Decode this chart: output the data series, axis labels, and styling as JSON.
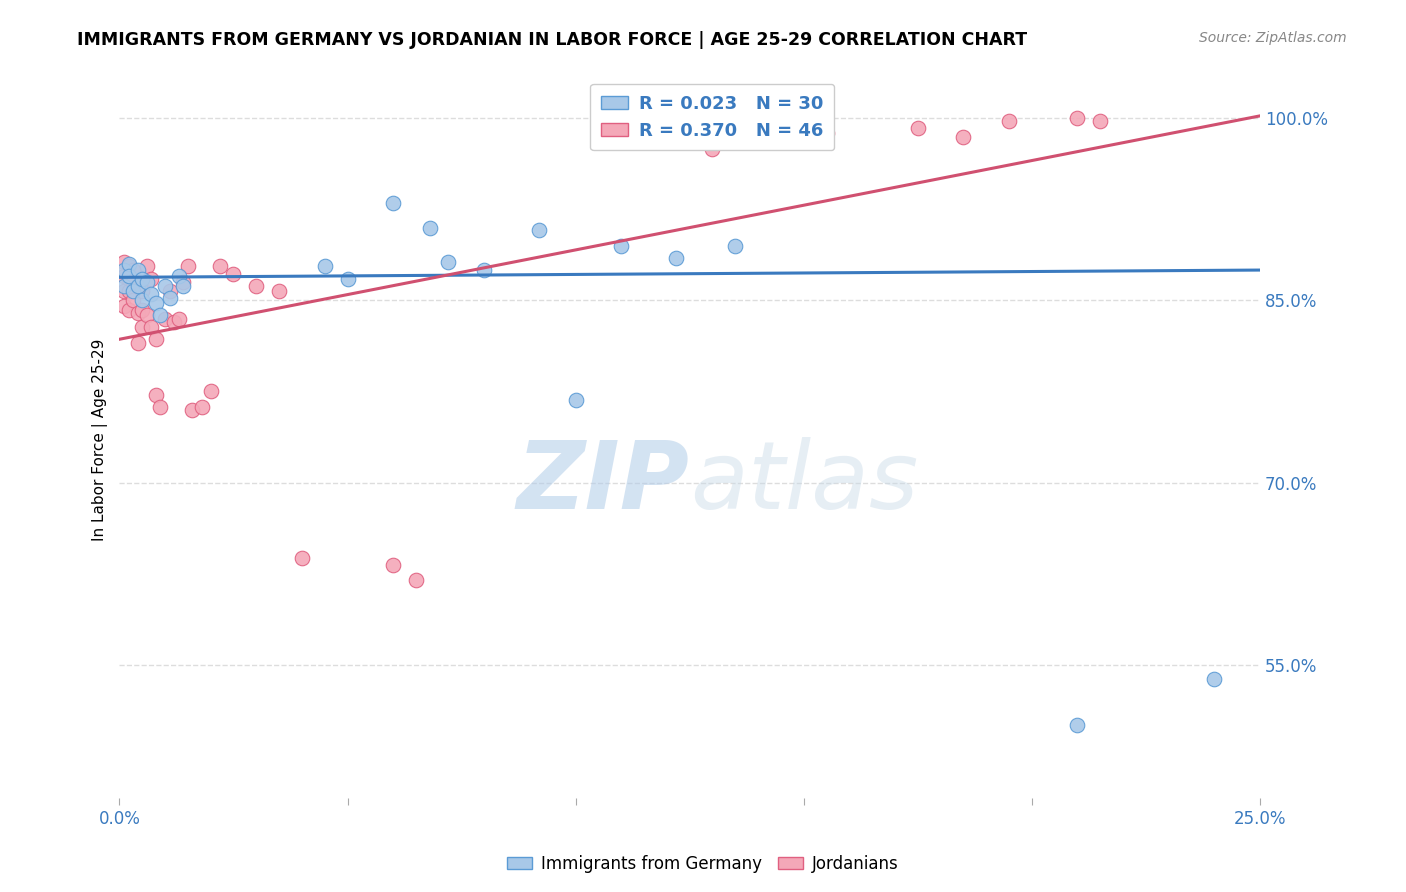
{
  "title": "IMMIGRANTS FROM GERMANY VS JORDANIAN IN LABOR FORCE | AGE 25-29 CORRELATION CHART",
  "source": "Source: ZipAtlas.com",
  "ylabel": "In Labor Force | Age 25-29",
  "xmin": 0.0,
  "xmax": 0.25,
  "ymin": 0.44,
  "ymax": 1.03,
  "xticks": [
    0.0,
    0.05,
    0.1,
    0.15,
    0.2,
    0.25
  ],
  "xtick_labels": [
    "0.0%",
    "",
    "",
    "",
    "",
    "25.0%"
  ],
  "yticks": [
    0.55,
    0.7,
    0.85,
    1.0
  ],
  "ytick_labels": [
    "55.0%",
    "70.0%",
    "85.0%",
    "100.0%"
  ],
  "grid_color": "#dddddd",
  "blue_color": "#a8c8e8",
  "pink_color": "#f4a8b8",
  "blue_edge_color": "#5b9bd5",
  "pink_edge_color": "#e06080",
  "blue_line_color": "#3a7abf",
  "pink_line_color": "#d05070",
  "legend_R_blue": "R = 0.023",
  "legend_N_blue": "N = 30",
  "legend_R_pink": "R = 0.370",
  "legend_N_pink": "N = 46",
  "legend_label_blue": "Immigrants from Germany",
  "legend_label_pink": "Jordanians",
  "watermark_zip": "ZIP",
  "watermark_atlas": "atlas",
  "blue_x": [
    0.001,
    0.001,
    0.002,
    0.002,
    0.003,
    0.004,
    0.004,
    0.005,
    0.005,
    0.006,
    0.007,
    0.008,
    0.009,
    0.01,
    0.011,
    0.013,
    0.014,
    0.045,
    0.05,
    0.06,
    0.068,
    0.072,
    0.08,
    0.092,
    0.1,
    0.11,
    0.122,
    0.135,
    0.21,
    0.24
  ],
  "blue_y": [
    0.875,
    0.862,
    0.88,
    0.87,
    0.858,
    0.875,
    0.862,
    0.85,
    0.868,
    0.865,
    0.855,
    0.848,
    0.838,
    0.862,
    0.852,
    0.87,
    0.862,
    0.878,
    0.868,
    0.93,
    0.91,
    0.882,
    0.875,
    0.908,
    0.768,
    0.895,
    0.885,
    0.895,
    0.5,
    0.538
  ],
  "pink_x": [
    0.001,
    0.001,
    0.001,
    0.001,
    0.002,
    0.002,
    0.002,
    0.002,
    0.003,
    0.003,
    0.003,
    0.004,
    0.004,
    0.005,
    0.005,
    0.005,
    0.006,
    0.006,
    0.007,
    0.007,
    0.008,
    0.008,
    0.009,
    0.01,
    0.011,
    0.012,
    0.013,
    0.014,
    0.015,
    0.016,
    0.018,
    0.02,
    0.022,
    0.025,
    0.03,
    0.035,
    0.04,
    0.06,
    0.065,
    0.13,
    0.155,
    0.175,
    0.185,
    0.195,
    0.21,
    0.215
  ],
  "pink_y": [
    0.882,
    0.87,
    0.858,
    0.845,
    0.878,
    0.868,
    0.858,
    0.842,
    0.875,
    0.865,
    0.85,
    0.84,
    0.815,
    0.858,
    0.842,
    0.828,
    0.878,
    0.838,
    0.868,
    0.828,
    0.818,
    0.772,
    0.762,
    0.835,
    0.858,
    0.832,
    0.835,
    0.865,
    0.878,
    0.76,
    0.762,
    0.775,
    0.878,
    0.872,
    0.862,
    0.858,
    0.638,
    0.632,
    0.62,
    0.975,
    0.988,
    0.992,
    0.985,
    0.998,
    1.0,
    0.998
  ],
  "blue_line_x": [
    0.0,
    0.25
  ],
  "blue_line_y": [
    0.869,
    0.875
  ],
  "pink_line_x": [
    0.0,
    0.25
  ],
  "pink_line_y": [
    0.818,
    1.002
  ]
}
